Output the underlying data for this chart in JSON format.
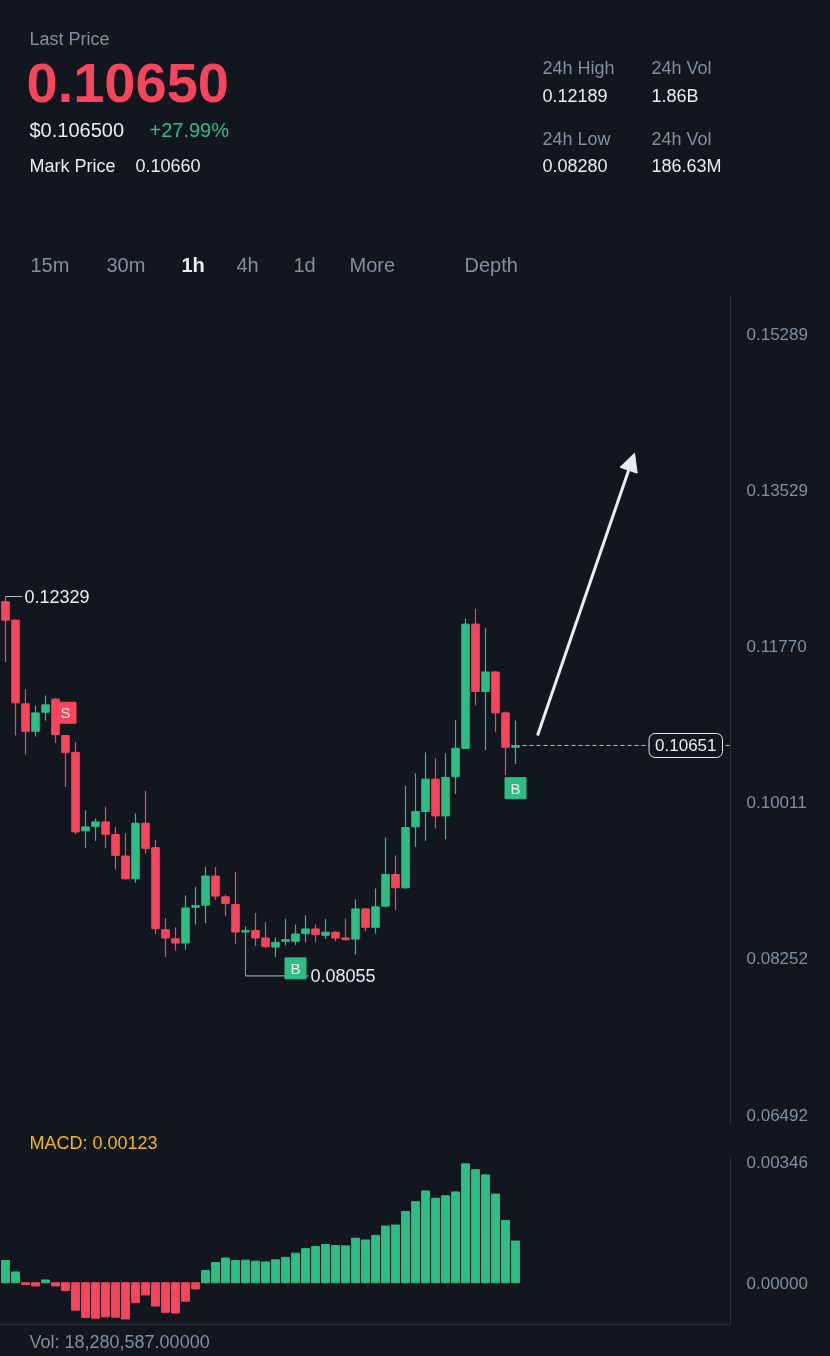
{
  "chart_data": [
    {
      "type": "other",
      "annotations": [
        "Last Price",
        "0.10650",
        "$0.106500",
        "+27.99%",
        "Mark Price",
        "0.10660",
        "24h High",
        "0.12189",
        "24h Vol",
        "1.86B",
        "24h Low",
        "0.08280",
        "24h Vol",
        "186.63M",
        "15m",
        "30m",
        "1h",
        "4h",
        "1d",
        "More",
        "Depth"
      ]
    },
    {
      "type": "candlestick",
      "categories": [
        null,
        null,
        null,
        null,
        null,
        null,
        null,
        null,
        null,
        null,
        null,
        null,
        null,
        null,
        null,
        null,
        null,
        null,
        null,
        null,
        null,
        null,
        null,
        null,
        null,
        null,
        null,
        null,
        null,
        null,
        null,
        null,
        null,
        null,
        null,
        null,
        null,
        null,
        null,
        null,
        null,
        null,
        null,
        null,
        null,
        null,
        null,
        null,
        null,
        null,
        null,
        null,
        null,
        null,
        null,
        null,
        null,
        null,
        null,
        null,
        null,
        null,
        null,
        null,
        null,
        null,
        null,
        null,
        null,
        null,
        null,
        null,
        null
      ],
      "ohlc": [
        [
          0.1227,
          0.12329,
          0.11592,
          0.12063
        ],
        [
          0.12063,
          0.1207,
          0.10763,
          0.11131
        ],
        [
          0.1112,
          0.11283,
          0.10548,
          0.10811
        ],
        [
          0.10811,
          0.11102,
          0.10752,
          0.11018
        ],
        [
          0.11026,
          0.11215,
          0.10932,
          0.11109
        ],
        [
          0.11173,
          0.11185,
          0.10679,
          0.10774
        ],
        [
          0.10763,
          0.1077,
          0.10186,
          0.10574
        ],
        [
          0.10574,
          0.10687,
          0.0965,
          0.09677
        ],
        [
          0.09689,
          0.09922,
          0.095,
          0.09734
        ],
        [
          0.09737,
          0.09828,
          0.09576,
          0.0979
        ],
        [
          0.0979,
          0.09963,
          0.095,
          0.0965
        ],
        [
          0.09647,
          0.09734,
          0.09254,
          0.09413
        ],
        [
          0.09406,
          0.09662,
          0.09141,
          0.09149
        ],
        [
          0.09149,
          0.09884,
          0.09104,
          0.09775
        ],
        [
          0.09775,
          0.10141,
          0.09435,
          0.09492
        ],
        [
          0.095,
          0.09587,
          0.08531,
          0.08587
        ],
        [
          0.08576,
          0.08708,
          0.08264,
          0.08482
        ],
        [
          0.08474,
          0.08603,
          0.08339,
          0.08426
        ],
        [
          0.08426,
          0.08965,
          0.0835,
          0.08821
        ],
        [
          0.08829,
          0.09059,
          0.08633,
          0.08847
        ],
        [
          0.08852,
          0.09285,
          0.08652,
          0.0918
        ],
        [
          0.0918,
          0.09281,
          0.08909,
          0.08954
        ],
        [
          0.08946,
          0.08972,
          0.08728,
          0.0887
        ],
        [
          0.08859,
          0.09225,
          0.08418,
          0.0855
        ],
        [
          0.0855,
          0.08615,
          0.08055,
          0.08565
        ],
        [
          0.08565,
          0.08765,
          0.08395,
          0.08482
        ],
        [
          0.08482,
          0.0866,
          0.08369,
          0.08388
        ],
        [
          0.0838,
          0.0849,
          0.08267,
          0.08434
        ],
        [
          0.08445,
          0.087,
          0.084,
          0.08463
        ],
        [
          0.08445,
          0.08633,
          0.084,
          0.08527
        ],
        [
          0.08531,
          0.08739,
          0.08434,
          0.08584
        ],
        [
          0.08584,
          0.08633,
          0.08434,
          0.0852
        ],
        [
          0.08513,
          0.08697,
          0.08471,
          0.08547
        ],
        [
          0.08547,
          0.0856,
          0.08445,
          0.08482
        ],
        [
          0.08482,
          0.087,
          0.08455,
          0.08463
        ],
        [
          0.0847,
          0.08918,
          0.08296,
          0.0881
        ],
        [
          0.0881,
          0.0882,
          0.08558,
          0.08603
        ],
        [
          0.08603,
          0.0904,
          0.08531,
          0.08833
        ],
        [
          0.08841,
          0.09613,
          0.0883,
          0.09198
        ],
        [
          0.09198,
          0.09413,
          0.08795,
          0.09048
        ],
        [
          0.09048,
          0.10197,
          0.09036,
          0.09726
        ],
        [
          0.09734,
          0.10337,
          0.09508,
          0.09907
        ],
        [
          0.09907,
          0.10574,
          0.09576,
          0.10272
        ],
        [
          0.10272,
          0.10506,
          0.09715,
          0.09858
        ],
        [
          0.09858,
          0.10563,
          0.09594,
          0.10291
        ],
        [
          0.10299,
          0.10939,
          0.10103,
          0.10619
        ],
        [
          0.10619,
          0.12081,
          0.1061,
          0.12018
        ],
        [
          0.12018,
          0.12189,
          0.11102,
          0.1126
        ],
        [
          0.1126,
          0.11976,
          0.106,
          0.11479
        ],
        [
          0.11479,
          0.1149,
          0.108,
          0.11018
        ],
        [
          0.11018,
          0.11034,
          0.10317,
          0.10631
        ],
        [
          0.10631,
          0.10932,
          0.10442,
          0.10651
        ],
        null,
        null,
        null,
        null,
        null,
        null,
        null,
        null,
        null,
        null,
        null,
        null,
        null,
        null,
        null,
        null,
        null,
        null,
        null,
        null,
        null
      ],
      "colors": [
        "#f6465d",
        "#f6465d",
        "#f6465d",
        "#2ebd85",
        "#2ebd85",
        "#f6465d",
        "#f6465d",
        "#f6465d",
        "#2ebd85",
        "#2ebd85",
        "#f6465d",
        "#f6465d",
        "#f6465d",
        "#2ebd85",
        "#f6465d",
        "#f6465d",
        "#f6465d",
        "#f6465d",
        "#2ebd85",
        "#2ebd85",
        "#2ebd85",
        "#f6465d",
        "#f6465d",
        "#f6465d",
        "#2ebd85",
        "#f6465d",
        "#f6465d",
        "#2ebd85",
        "#2ebd85",
        "#2ebd85",
        "#2ebd85",
        "#f6465d",
        "#2ebd85",
        "#f6465d",
        "#f6465d",
        "#2ebd85",
        "#f6465d",
        "#2ebd85",
        "#2ebd85",
        "#f6465d",
        "#2ebd85",
        "#2ebd85",
        "#2ebd85",
        "#f6465d",
        "#2ebd85",
        "#2ebd85",
        "#2ebd85",
        "#f6465d",
        "#2ebd85",
        "#f6465d",
        "#f6465d",
        "#2ebd85",
        null,
        null,
        null,
        null,
        null,
        null,
        null,
        null,
        null,
        null,
        null,
        null,
        null,
        null,
        null,
        null,
        null,
        null,
        null,
        null,
        null
      ],
      "ylim": [
        0.0637,
        0.1572
      ],
      "yticks": [
        0.15289,
        0.13529,
        {
          "value": 0.1177,
          "label": "0.11770"
        },
        0.10011,
        0.08252,
        0.06492
      ],
      "tick_labels": "y",
      "annotations": [
        "0.12329",
        "0.08055"
      ],
      "ref_lines": [
        {
          "axis": "y",
          "value": 0.10651,
          "label": "0.10651",
          "line_style": "dashed",
          "color": "#b7bdc6"
        }
      ],
      "series": [
        {
          "type": "scatter",
          "color": "#f6465d",
          "marker": "square",
          "values": [
            null,
            null,
            null,
            null,
            null,
            null,
            0.1102,
            null,
            null,
            null,
            null,
            null,
            null,
            null,
            null,
            null,
            null,
            null,
            null,
            null,
            null,
            null,
            null,
            null,
            null,
            null,
            null,
            null,
            null,
            null,
            null,
            null,
            null,
            null,
            null,
            null,
            null,
            null,
            null,
            null,
            null,
            null,
            null,
            null,
            null,
            null,
            null,
            null,
            null,
            null,
            null,
            null,
            null,
            null,
            null,
            null,
            null,
            null,
            null,
            null,
            null,
            null,
            null,
            null,
            null,
            null,
            null,
            null,
            null,
            null,
            null,
            null,
            null
          ],
          "value_labels": [
            null,
            null,
            null,
            null,
            null,
            null,
            "S",
            null,
            null,
            null,
            null,
            null,
            null,
            null,
            null,
            null,
            null,
            null,
            null,
            null,
            null,
            null,
            null,
            null,
            null,
            null,
            null,
            null,
            null,
            null,
            null,
            null,
            null,
            null,
            null,
            null,
            null,
            null,
            null,
            null,
            null,
            null,
            null,
            null,
            null,
            null,
            null,
            null,
            null,
            null,
            null,
            null,
            null,
            null,
            null,
            null,
            null,
            null,
            null,
            null,
            null,
            null,
            null,
            null,
            null,
            null,
            null,
            null,
            null,
            null,
            null,
            null,
            null
          ]
        },
        {
          "type": "scatter",
          "color": "#2ebd85",
          "marker": "square",
          "values": [
            null,
            null,
            null,
            null,
            null,
            null,
            null,
            null,
            null,
            null,
            null,
            null,
            null,
            null,
            null,
            null,
            null,
            null,
            null,
            null,
            null,
            null,
            null,
            null,
            null,
            null,
            null,
            null,
            null,
            0.0814,
            null,
            null,
            null,
            null,
            null,
            null,
            null,
            null,
            null,
            null,
            null,
            null,
            null,
            null,
            null,
            null,
            null,
            null,
            null,
            null,
            null,
            0.1017,
            null,
            null,
            null,
            null,
            null,
            null,
            null,
            null,
            null,
            null,
            null,
            null,
            null,
            null,
            null,
            null,
            null,
            null,
            null,
            null,
            null
          ],
          "value_labels": [
            null,
            null,
            null,
            null,
            null,
            null,
            null,
            null,
            null,
            null,
            null,
            null,
            null,
            null,
            null,
            null,
            null,
            null,
            null,
            null,
            null,
            null,
            null,
            null,
            null,
            null,
            null,
            null,
            null,
            "B",
            null,
            null,
            null,
            null,
            null,
            null,
            null,
            null,
            null,
            null,
            null,
            null,
            null,
            null,
            null,
            null,
            null,
            null,
            null,
            null,
            null,
            "B",
            null,
            null,
            null,
            null,
            null,
            null,
            null,
            null,
            null,
            null,
            null,
            null,
            null,
            null,
            null,
            null,
            null,
            null,
            null,
            null,
            null
          ]
        }
      ]
    },
    {
      "type": "bar",
      "title": "MACD: 0.00123",
      "categories": [
        null,
        null,
        null,
        null,
        null,
        null,
        null,
        null,
        null,
        null,
        null,
        null,
        null,
        null,
        null,
        null,
        null,
        null,
        null,
        null,
        null,
        null,
        null,
        null,
        null,
        null,
        null,
        null,
        null,
        null,
        null,
        null,
        null,
        null,
        null,
        null,
        null,
        null,
        null,
        null,
        null,
        null,
        null,
        null,
        null,
        null,
        null,
        null,
        null,
        null,
        null,
        null,
        null,
        null,
        null,
        null,
        null,
        null,
        null,
        null,
        null,
        null,
        null,
        null,
        null,
        null,
        null,
        null,
        null,
        null,
        null,
        null,
        null
      ],
      "values": [
        0.00064,
        0.00031,
        -5e-05,
        -9e-05,
        8e-05,
        -9e-05,
        -0.00022,
        -0.00079,
        -0.001,
        -0.00102,
        -0.00098,
        -0.00099,
        -0.00104,
        -0.00057,
        -0.00035,
        -0.00067,
        -0.00085,
        -0.00087,
        -0.00053,
        -0.00018,
        0.00035,
        0.00058,
        0.00071,
        0.00064,
        0.00065,
        0.00062,
        0.0006,
        0.00066,
        0.00073,
        0.00085,
        0.00098,
        0.00104,
        0.0011,
        0.00107,
        0.00106,
        0.00128,
        0.00123,
        0.00136,
        0.00163,
        0.00166,
        0.00205,
        0.00233,
        0.00264,
        0.00243,
        0.0025,
        0.00261,
        0.00342,
        0.00325,
        0.0031,
        0.00255,
        0.00179,
        0.0012,
        null,
        null,
        null,
        null,
        null,
        null,
        null,
        null,
        null,
        null,
        null,
        null,
        null,
        null,
        null,
        null,
        null,
        null,
        null,
        null,
        null
      ],
      "colors": [
        "#2ebd85",
        "#2ebd85",
        "#f6465d",
        "#f6465d",
        "#2ebd85",
        "#f6465d",
        "#f6465d",
        "#f6465d",
        "#f6465d",
        "#f6465d",
        "#f6465d",
        "#f6465d",
        "#f6465d",
        "#f6465d",
        "#f6465d",
        "#f6465d",
        "#f6465d",
        "#f6465d",
        "#f6465d",
        "#f6465d",
        "#2ebd85",
        "#2ebd85",
        "#2ebd85",
        "#2ebd85",
        "#2ebd85",
        "#2ebd85",
        "#2ebd85",
        "#2ebd85",
        "#2ebd85",
        "#2ebd85",
        "#2ebd85",
        "#2ebd85",
        "#2ebd85",
        "#2ebd85",
        "#2ebd85",
        "#2ebd85",
        "#2ebd85",
        "#2ebd85",
        "#2ebd85",
        "#2ebd85",
        "#2ebd85",
        "#2ebd85",
        "#2ebd85",
        "#2ebd85",
        "#2ebd85",
        "#2ebd85",
        "#2ebd85",
        "#2ebd85",
        "#2ebd85",
        "#2ebd85",
        "#2ebd85",
        "#2ebd85",
        null,
        null,
        null,
        null,
        null,
        null,
        null,
        null,
        null,
        null,
        null,
        null,
        null,
        null,
        null,
        null,
        null,
        null,
        null,
        null,
        null
      ],
      "ylim": [
        -0.0012,
        0.0036
      ],
      "yticks": [
        0.00346,
        {
          "value": 0,
          "label": "0.00000"
        }
      ],
      "tick_labels": "y",
      "annotations": [
        "Vol: 18,280,587.00000"
      ]
    }
  ]
}
